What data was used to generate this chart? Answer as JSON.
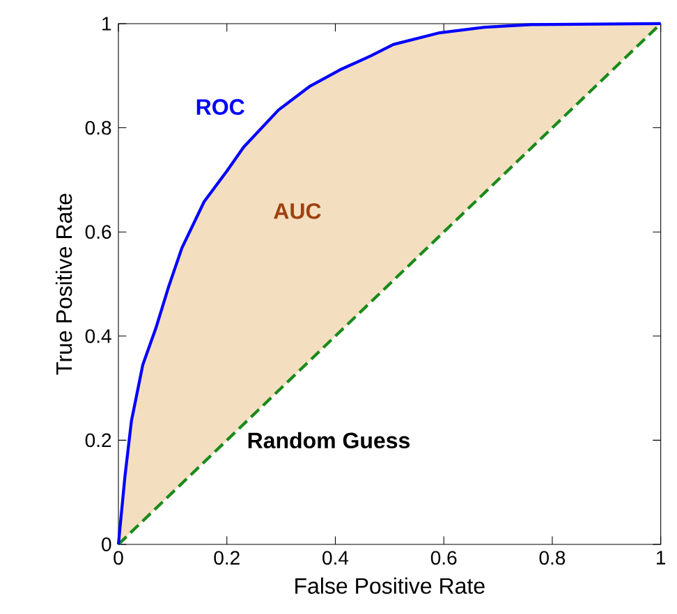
{
  "chart_data": {
    "type": "line",
    "xlabel": "False Positive Rate",
    "ylabel": "True Positive Rate",
    "annotations": [
      "AUC"
    ],
    "xlim": [
      0,
      1
    ],
    "ylim": [
      0,
      1
    ],
    "xticks": [
      0,
      0.2,
      0.4,
      0.6,
      0.8,
      1
    ],
    "yticks": [
      0,
      0.2,
      0.4,
      0.6,
      0.8,
      1
    ],
    "series": [
      {
        "name": "ROC",
        "color": "#0000ff",
        "x": [
          0,
          0.012,
          0.024,
          0.045,
          0.069,
          0.093,
          0.117,
          0.158,
          0.2,
          0.231,
          0.295,
          0.352,
          0.408,
          0.465,
          0.507,
          0.59,
          0.675,
          0.76,
          1
        ],
        "values": [
          0,
          0.13,
          0.237,
          0.345,
          0.415,
          0.496,
          0.569,
          0.658,
          0.717,
          0.763,
          0.834,
          0.879,
          0.911,
          0.938,
          0.96,
          0.982,
          0.993,
          0.998,
          1
        ],
        "lower": [
          0,
          0.012,
          0.024,
          0.045,
          0.069,
          0.093,
          0.117,
          0.158,
          0.2,
          0.231,
          0.295,
          0.352,
          0.408,
          0.465,
          0.507,
          0.59,
          0.675,
          0.76,
          1
        ],
        "upper": [
          0,
          0.13,
          0.237,
          0.345,
          0.415,
          0.496,
          0.569,
          0.658,
          0.717,
          0.763,
          0.834,
          0.879,
          0.911,
          0.938,
          0.96,
          0.982,
          0.993,
          0.998,
          1
        ]
      },
      {
        "name": "Random Guess",
        "color": "#1a8a1a",
        "line_style": "dashed",
        "x": [
          0,
          1
        ],
        "values": [
          0,
          1
        ]
      }
    ]
  }
}
